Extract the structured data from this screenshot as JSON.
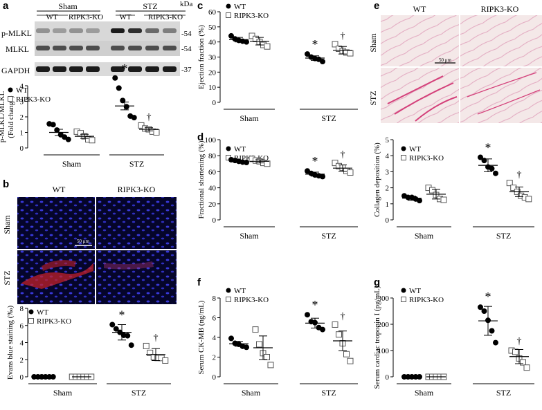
{
  "panel_labels": [
    "a",
    "b",
    "c",
    "d",
    "e",
    "f",
    "g"
  ],
  "blot": {
    "headers": {
      "group1": "Sham",
      "group2": "STZ",
      "lanes": [
        "WT",
        "RIPK3-KO",
        "WT",
        "RIPK3-KO"
      ]
    },
    "kda_label": "kDa",
    "rows": [
      {
        "name": "p-MLKL",
        "kda": "-54"
      },
      {
        "name": "MLKL",
        "kda": "-54"
      },
      {
        "name": "GAPDH",
        "kda": "-37"
      }
    ]
  },
  "micrographs": {
    "b": {
      "cols": [
        "WT",
        "RIPK3-KO"
      ],
      "rows": [
        "Sham",
        "STZ"
      ],
      "scale": "50 μm"
    },
    "e": {
      "cols": [
        "WT",
        "RIPK3-KO"
      ],
      "rows": [
        "Sham",
        "STZ"
      ],
      "scale": "50 μm"
    }
  },
  "colors": {
    "stain_pink": "#d4407a",
    "nuclei_blue": "#2b2bd6",
    "red_stain": "#c0202a",
    "bg_pink": "#f3e6e6"
  },
  "chart_data": [
    {
      "id": "a",
      "type": "scatter",
      "ylabel": "p-MLKL/MLKL\n(Fold change)",
      "ylim": [
        0,
        4
      ],
      "yticks": [
        0,
        1,
        2,
        3,
        4
      ],
      "categories": [
        "Sham",
        "STZ"
      ],
      "legend": [
        "WT",
        "RIPK3-KO"
      ],
      "sig": {
        "STZ_WT": "*",
        "STZ_KO": "†"
      },
      "series": [
        {
          "name": "WT",
          "values": {
            "Sham": [
              1.55,
              1.5,
              1.15,
              0.85,
              0.7,
              0.55
            ],
            "STZ": [
              4.5,
              3.85,
              3.05,
              2.65,
              2.05,
              1.95
            ]
          },
          "mean": [
            1.0,
            2.7
          ],
          "sem": [
            0.2,
            0.25
          ]
        },
        {
          "name": "RIPK3-KO",
          "values": {
            "Sham": [
              1.05,
              0.95,
              0.75,
              0.55,
              0.5
            ],
            "STZ": [
              1.45,
              1.25,
              1.2,
              1.05,
              1.0
            ]
          },
          "mean": [
            0.75,
            1.2
          ],
          "sem": [
            0.13,
            0.1
          ]
        }
      ]
    },
    {
      "id": "b",
      "type": "scatter",
      "ylabel": "Evans blue staining (‰)",
      "ylim": [
        0,
        8
      ],
      "yticks": [
        0,
        2,
        4,
        6,
        8
      ],
      "categories": [
        "Sham",
        "STZ"
      ],
      "legend": [
        "WT",
        "RIPK3-KO"
      ],
      "sig": {
        "STZ_WT": "*",
        "STZ_KO": "†"
      },
      "series": [
        {
          "name": "WT",
          "values": {
            "Sham": [
              0,
              0,
              0,
              0,
              0,
              0
            ],
            "STZ": [
              6.1,
              5.6,
              5.2,
              4.85,
              4.8,
              3.7
            ]
          },
          "mean": [
            0,
            5.2
          ],
          "sem": [
            0,
            0.9
          ]
        },
        {
          "name": "RIPK3-KO",
          "values": {
            "Sham": [
              0,
              0,
              0,
              0,
              0,
              0
            ],
            "STZ": [
              3.6,
              2.8,
              2.3,
              2.2,
              2.2,
              1.9
            ]
          },
          "mean": [
            0,
            2.6
          ],
          "sem": [
            0,
            0.7
          ]
        }
      ]
    },
    {
      "id": "c",
      "type": "scatter",
      "ylabel": "Ejection fraction (%)",
      "ylim": [
        0,
        60
      ],
      "yticks": [
        0,
        10,
        20,
        30,
        40,
        50,
        60
      ],
      "categories": [
        "Sham",
        "STZ"
      ],
      "legend": [
        "WT",
        "RIPK3-KO"
      ],
      "sig": {
        "STZ_WT": "*",
        "STZ_KO": "†"
      },
      "series": [
        {
          "name": "WT",
          "values": {
            "Sham": [
              44,
              42,
              41,
              40.5,
              40
            ],
            "STZ": [
              32,
              30,
              29,
              28.5,
              27
            ]
          },
          "mean": [
            41.5,
            29.3
          ],
          "sem": [
            1.5,
            1.5
          ]
        },
        {
          "name": "RIPK3-KO",
          "values": {
            "Sham": [
              44,
              42,
              40,
              38,
              37
            ],
            "STZ": [
              38.5,
              35.5,
              34,
              33,
              32.5
            ]
          },
          "mean": [
            40.5,
            34.5
          ],
          "sem": [
            2.5,
            2.5
          ]
        }
      ]
    },
    {
      "id": "d1",
      "type": "scatter",
      "ylabel": "Fractional shortening (%)",
      "ylim": [
        0,
        100
      ],
      "yticks": [
        0,
        20,
        40,
        60,
        80,
        100
      ],
      "categories": [
        "Sham",
        "STZ"
      ],
      "legend": [
        "WT",
        "RIPK3-KO"
      ],
      "sig": {
        "STZ_WT": "*",
        "STZ_KO": "†"
      },
      "series": [
        {
          "name": "WT",
          "values": {
            "Sham": [
              75,
              74,
              73,
              72,
              71.5
            ],
            "STZ": [
              61,
              58,
              56,
              55,
              54
            ]
          },
          "mean": [
            73,
            57
          ],
          "sem": [
            1.5,
            2.5
          ]
        },
        {
          "name": "RIPK3-KO",
          "values": {
            "Sham": [
              76,
              74,
              73,
              71,
              70
            ],
            "STZ": [
              71,
              67,
              65,
              61,
              59
            ]
          },
          "mean": [
            73,
            64.5
          ],
          "sem": [
            2,
            4
          ]
        }
      ]
    },
    {
      "id": "d2",
      "type": "scatter",
      "ylabel": "Collagen deposition (%)",
      "ylim": [
        0,
        5
      ],
      "yticks": [
        0,
        1,
        2,
        3,
        4,
        5
      ],
      "categories": [
        "Sham",
        "STZ"
      ],
      "legend": [
        "WT",
        "RIPK3-KO"
      ],
      "sig": {
        "STZ_WT": "*",
        "STZ_KO": "†"
      },
      "series": [
        {
          "name": "WT",
          "values": {
            "Sham": [
              1.5,
              1.4,
              1.4,
              1.3,
              1.2
            ],
            "STZ": [
              3.9,
              3.7,
              3.3,
              3.2,
              2.9
            ]
          },
          "mean": [
            1.35,
            3.4
          ],
          "sem": [
            0.13,
            0.4
          ]
        },
        {
          "name": "RIPK3-KO",
          "values": {
            "Sham": [
              2.0,
              1.85,
              1.55,
              1.3,
              1.25
            ],
            "STZ": [
              2.3,
              2.0,
              1.75,
              1.5,
              1.4,
              1.3
            ]
          },
          "mean": [
            1.6,
            1.75
          ],
          "sem": [
            0.3,
            0.3
          ]
        }
      ]
    },
    {
      "id": "f",
      "type": "scatter",
      "ylabel": "Serum CK-MB (ng/mL)",
      "ylim": [
        0,
        8
      ],
      "yticks": [
        0,
        2,
        4,
        6,
        8
      ],
      "categories": [
        "Sham",
        "STZ"
      ],
      "legend": [
        "WT",
        "RIPK3-KO"
      ],
      "sig": {
        "STZ_WT": "*",
        "STZ_KO": "†"
      },
      "series": [
        {
          "name": "WT",
          "values": {
            "Sham": [
              3.9,
              3.4,
              3.3,
              3.1,
              3.0
            ],
            "STZ": [
              6.3,
              5.6,
              5.5,
              5.0,
              4.8
            ]
          },
          "mean": [
            3.35,
            5.45
          ],
          "sem": [
            0.25,
            0.5
          ]
        },
        {
          "name": "RIPK3-KO",
          "values": {
            "Sham": [
              4.8,
              3.3,
              2.4,
              2.0,
              1.2
            ],
            "STZ": [
              5.3,
              4.3,
              3.4,
              2.3,
              1.6
            ]
          },
          "mean": [
            2.95,
            3.65
          ],
          "sem": [
            1.2,
            1.0
          ]
        }
      ]
    },
    {
      "id": "g",
      "type": "scatter",
      "ylabel": "Serum cardiac troponin I (pg/mL)",
      "ylim": [
        0,
        300
      ],
      "yticks": [
        0,
        100,
        200,
        300
      ],
      "categories": [
        "Sham",
        "STZ"
      ],
      "legend": [
        "WT",
        "RIPK3-KO"
      ],
      "sig": {
        "STZ_WT": "*",
        "STZ_KO": "†"
      },
      "series": [
        {
          "name": "WT",
          "values": {
            "Sham": [
              0,
              0,
              0,
              0,
              0
            ],
            "STZ": [
              265,
              250,
              215,
              175,
              130
            ]
          },
          "mean": [
            0,
            213
          ],
          "sem": [
            0,
            55
          ]
        },
        {
          "name": "RIPK3-KO",
          "values": {
            "Sham": [
              0,
              0,
              0,
              0,
              0
            ],
            "STZ": [
              100,
              95,
              70,
              55,
              35
            ]
          },
          "mean": [
            0,
            77
          ],
          "sem": [
            0,
            27
          ]
        }
      ]
    }
  ]
}
